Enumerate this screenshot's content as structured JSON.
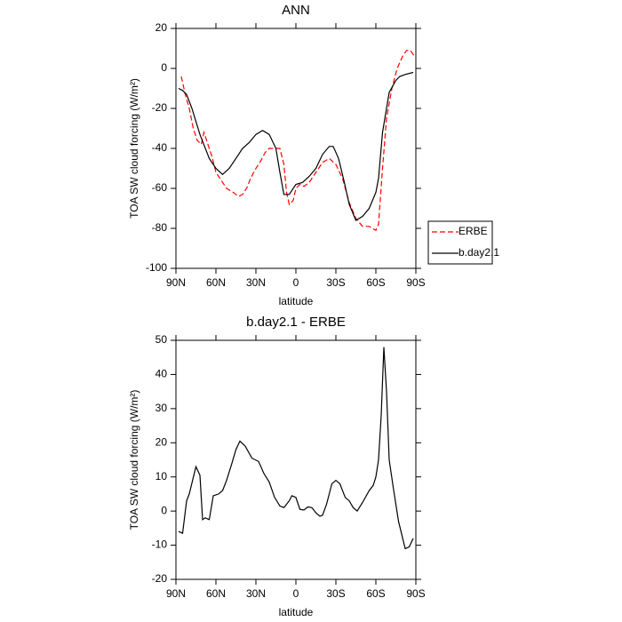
{
  "chart_data": [
    {
      "type": "line",
      "title": "ANN",
      "xlabel": "latitude",
      "ylabel": "TOA SW cloud forcing (W/m²)",
      "xlim": [
        90,
        -90
      ],
      "ylim": [
        -100,
        20
      ],
      "xticks": [
        {
          "value": 90,
          "label": "90N"
        },
        {
          "value": 60,
          "label": "60N"
        },
        {
          "value": 30,
          "label": "30N"
        },
        0,
        {
          "value": -30,
          "label": "30S"
        },
        {
          "value": -60,
          "label": "60S"
        },
        {
          "value": -90,
          "label": "90S"
        }
      ],
      "yticks": [
        -100,
        -80,
        -60,
        -40,
        -20,
        0,
        20
      ],
      "legend": "right",
      "series": [
        {
          "name": "ERBE",
          "color": "#ff0000",
          "linestyle": "dashed",
          "x": [
            86,
            83,
            80,
            77,
            74,
            71,
            69,
            66,
            63,
            60,
            56,
            52,
            47,
            43,
            40,
            37,
            34,
            30,
            27,
            23,
            20,
            16,
            12,
            9,
            7,
            5,
            2,
            0,
            -3,
            -6,
            -10,
            -15,
            -20,
            -25,
            -30,
            -35,
            -40,
            -45,
            -50,
            -55,
            -60,
            -62,
            -65,
            -68,
            -72,
            -76,
            -80,
            -83,
            -86,
            -89
          ],
          "values": [
            -4,
            -13,
            -20,
            -30,
            -36,
            -38,
            -32,
            -38,
            -44,
            -52,
            -56,
            -60,
            -62,
            -64,
            -63,
            -60,
            -55,
            -50,
            -47,
            -42,
            -40,
            -40,
            -40,
            -48,
            -62,
            -68,
            -66,
            -60,
            -58,
            -59,
            -57,
            -52,
            -47,
            -45,
            -48,
            -55,
            -67,
            -75,
            -79,
            -79,
            -81,
            -78,
            -50,
            -25,
            -10,
            0,
            6,
            9,
            9,
            6
          ]
        },
        {
          "name": "b.day2.1",
          "color": "#000000",
          "linestyle": "solid",
          "x": [
            88,
            85,
            82,
            78,
            72,
            65,
            60,
            55,
            50,
            45,
            40,
            35,
            30,
            25,
            20,
            15,
            12,
            9,
            5,
            0,
            -5,
            -10,
            -15,
            -20,
            -25,
            -28,
            -32,
            -36,
            -40,
            -45,
            -50,
            -55,
            -60,
            -62,
            -65,
            -70,
            -75,
            -78,
            -82,
            -88
          ],
          "values": [
            -10,
            -11,
            -13,
            -20,
            -33,
            -45,
            -50,
            -53,
            -50,
            -45,
            -40,
            -37,
            -33,
            -31,
            -33,
            -40,
            -52,
            -63,
            -63,
            -58,
            -57,
            -54,
            -50,
            -43,
            -39,
            -39,
            -45,
            -56,
            -68,
            -76,
            -74,
            -70,
            -62,
            -55,
            -32,
            -12,
            -6,
            -4,
            -3,
            -2
          ]
        }
      ]
    },
    {
      "type": "line",
      "title": "b.day2.1 - ERBE",
      "xlabel": "latitude",
      "ylabel": "TOA SW cloud forcing (W/m²)",
      "xlim": [
        90,
        -90
      ],
      "ylim": [
        -20,
        50
      ],
      "xticks": [
        {
          "value": 90,
          "label": "90N"
        },
        {
          "value": 60,
          "label": "60N"
        },
        {
          "value": 30,
          "label": "30N"
        },
        0,
        {
          "value": -30,
          "label": "30S"
        },
        {
          "value": -60,
          "label": "60S"
        },
        {
          "value": -90,
          "label": "90S"
        }
      ],
      "yticks": [
        -20,
        -10,
        0,
        10,
        20,
        30,
        40,
        50
      ],
      "series": [
        {
          "color": "#000000",
          "linestyle": "solid",
          "x": [
            88,
            85,
            82,
            80,
            75,
            72,
            70,
            68,
            65,
            62,
            58,
            55,
            52,
            48,
            45,
            42,
            38,
            33,
            28,
            24,
            20,
            16,
            12,
            9,
            5,
            3,
            0,
            -3,
            -6,
            -9,
            -12,
            -15,
            -18,
            -20,
            -23,
            -27,
            -30,
            -33,
            -37,
            -40,
            -43,
            -46,
            -50,
            -55,
            -58,
            -60,
            -62,
            -64,
            -66,
            -68,
            -70,
            -73,
            -77,
            -82,
            -85,
            -88
          ],
          "values": [
            -6,
            -6.5,
            3,
            5,
            13,
            10.5,
            -2.5,
            -2,
            -2.5,
            4.5,
            5,
            6,
            9,
            14,
            18,
            20.5,
            19,
            15.5,
            14.5,
            11,
            8.5,
            4,
            1.5,
            1,
            3,
            4.5,
            4,
            0.5,
            0.3,
            1.2,
            1,
            -0.5,
            -1.5,
            -1.2,
            2,
            8,
            9,
            8,
            4,
            3,
            1,
            0,
            2.5,
            6,
            7.5,
            10,
            15,
            28,
            48,
            35,
            15,
            7,
            -3,
            -11,
            -10.5,
            -8
          ]
        }
      ]
    }
  ]
}
